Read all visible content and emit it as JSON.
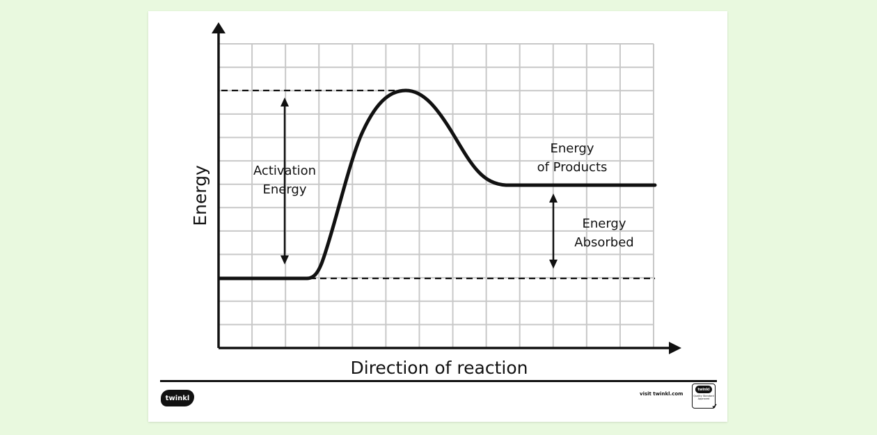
{
  "diagram": {
    "y_axis_label": "Energy",
    "x_axis_label": "Direction of reaction",
    "activation_energy": [
      "Activation",
      "Energy"
    ],
    "energy_of_products": [
      "Energy",
      "of Products"
    ],
    "energy_absorbed": [
      "Energy",
      "Absorbed"
    ]
  },
  "footer": {
    "logo_text": "twinkl",
    "visit_text": "visit twinkl.com",
    "badge_top": "twinkl",
    "badge_text": "Quality Standard Approved"
  }
}
